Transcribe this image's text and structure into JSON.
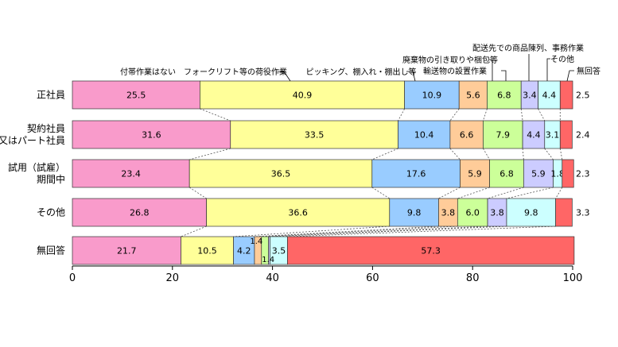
{
  "chart_data": {
    "type": "bar",
    "orientation": "horizontal",
    "stacked": true,
    "xlim": [
      0,
      100
    ],
    "x_ticks": [
      "0",
      "20",
      "40",
      "60",
      "80",
      "100"
    ],
    "categories": [
      "正社員",
      "契約社員\n又はパート社員",
      "試用（試雇）\n期間中",
      "その他",
      "無回答"
    ],
    "series": [
      {
        "name": "付帯作業はない",
        "color": "#f99bcb",
        "values": [
          25.5,
          31.6,
          23.4,
          26.8,
          21.7
        ]
      },
      {
        "name": "フォークリフト等の荷役作業",
        "color": "#ffff99",
        "values": [
          40.9,
          33.5,
          36.5,
          36.6,
          10.5
        ]
      },
      {
        "name": "ピッキング、棚入れ・棚出し等",
        "color": "#99ccff",
        "values": [
          10.9,
          10.4,
          17.6,
          9.8,
          4.2
        ]
      },
      {
        "name": "廃棄物の引き取りや梱包等",
        "color": "#ffcc99",
        "values": [
          5.6,
          6.6,
          5.9,
          3.8,
          1.4
        ]
      },
      {
        "name": "輸送物の設置作業",
        "color": "#ccff99",
        "values": [
          6.8,
          7.9,
          6.8,
          6.0,
          1.4
        ]
      },
      {
        "name": "配送先での商品陳列、事務作業",
        "color": "#ccccff",
        "values": [
          3.4,
          4.4,
          5.9,
          3.8,
          0.3
        ]
      },
      {
        "name": "その他",
        "color": "#ccffff",
        "values": [
          4.4,
          3.1,
          1.8,
          9.8,
          3.5
        ]
      },
      {
        "name": "無回答",
        "color": "#ff6666",
        "values": [
          2.5,
          2.4,
          2.3,
          3.3,
          57.3
        ]
      }
    ],
    "segment_labels": [
      [
        "25.5",
        "40.9",
        "10.9",
        "5.6",
        "6.8",
        "3.4",
        "4.4",
        null
      ],
      [
        "31.6",
        "33.5",
        "10.4",
        "6.6",
        "7.9",
        "4.4",
        "3.1",
        null
      ],
      [
        "23.4",
        "36.5",
        "17.6",
        "5.9",
        "6.8",
        "5.9",
        "1.8",
        null
      ],
      [
        "26.8",
        "36.6",
        "9.8",
        "3.8",
        "6.0",
        "3.8",
        "9.8",
        null
      ],
      [
        "21.7",
        "10.5",
        "4.2",
        null,
        null,
        null,
        "3.5",
        "57.3"
      ]
    ],
    "outside_labels": [
      "2.5",
      "2.4",
      "2.3",
      "3.3",
      null
    ],
    "small_callouts": [
      "1.4",
      "1.4"
    ]
  }
}
